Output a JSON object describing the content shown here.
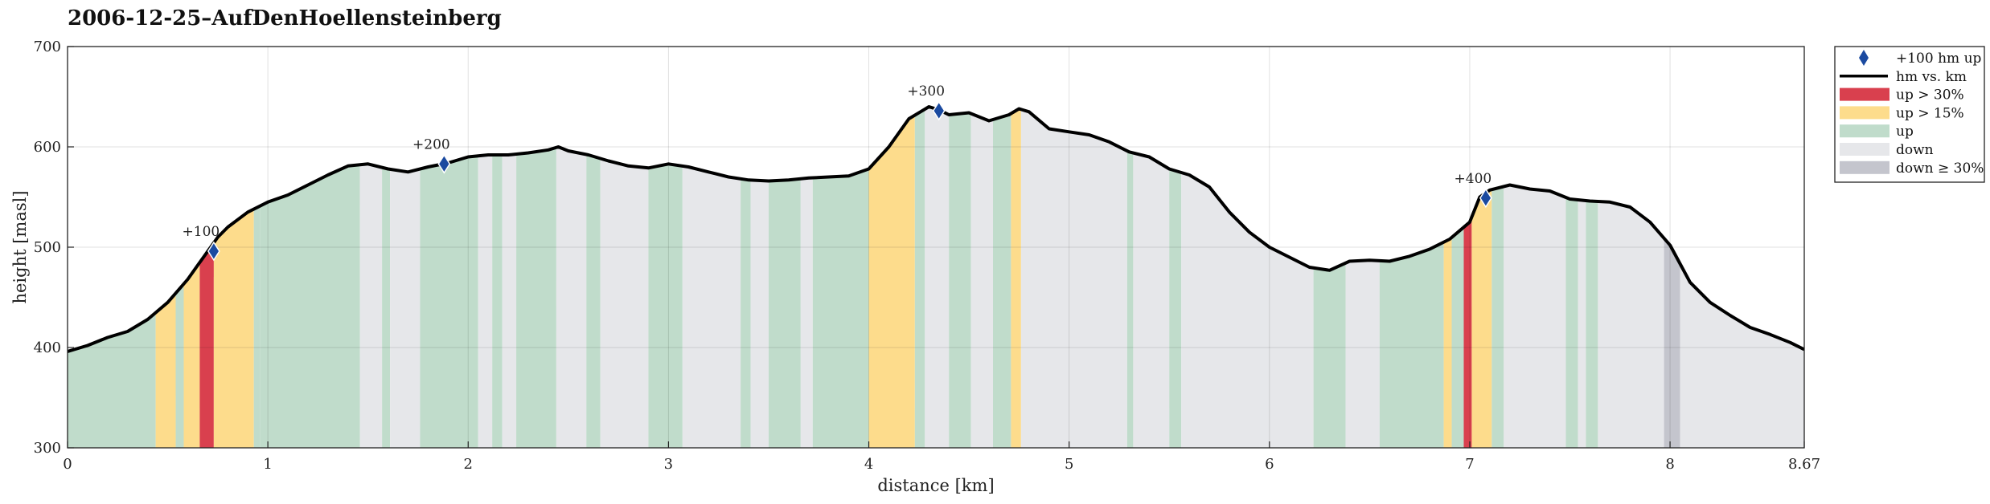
{
  "chart_data": {
    "type": "area",
    "title": "2006-12-25–AufDenHoellensteinberg",
    "xlabel": "distance [km]",
    "ylabel": "height [masl]",
    "xlim": [
      0,
      8.67
    ],
    "ylim": [
      300,
      700
    ],
    "xticks": [
      "0",
      "1",
      "2",
      "3",
      "4",
      "5",
      "6",
      "7",
      "8",
      "8.67"
    ],
    "xtick_values": [
      0,
      1,
      2,
      3,
      4,
      5,
      6,
      7,
      8,
      8.67
    ],
    "yticks": [
      "300",
      "400",
      "500",
      "600",
      "700"
    ],
    "ytick_values": [
      300,
      400,
      500,
      600,
      700
    ],
    "grid": true,
    "legend_position": "right",
    "colors": {
      "up": "#c0dccb",
      "down": "#e6e7ea",
      "up15": "#fddc8c",
      "up30": "#d9404e",
      "down30": "#c4c5cd",
      "line": "#000000",
      "marker": "#1b4aa0"
    },
    "legend": [
      {
        "label": "+100 hm up",
        "kind": "marker"
      },
      {
        "label": "hm vs. km",
        "kind": "line"
      },
      {
        "label": "up > 30%",
        "kind": "up30"
      },
      {
        "label": "up > 15%",
        "kind": "up15"
      },
      {
        "label": "up",
        "kind": "up"
      },
      {
        "label": "down",
        "kind": "down"
      },
      {
        "label": "down ≥ 30%",
        "kind": "down30"
      }
    ],
    "profile": {
      "x": [
        0,
        0.1,
        0.2,
        0.3,
        0.4,
        0.5,
        0.6,
        0.65,
        0.7,
        0.75,
        0.8,
        0.9,
        1.0,
        1.1,
        1.2,
        1.3,
        1.4,
        1.5,
        1.6,
        1.7,
        1.8,
        1.9,
        2.0,
        2.1,
        2.2,
        2.3,
        2.4,
        2.45,
        2.5,
        2.6,
        2.7,
        2.8,
        2.9,
        3.0,
        3.1,
        3.2,
        3.3,
        3.4,
        3.5,
        3.6,
        3.7,
        3.8,
        3.9,
        4.0,
        4.1,
        4.2,
        4.3,
        4.35,
        4.4,
        4.5,
        4.6,
        4.7,
        4.75,
        4.8,
        4.9,
        5.0,
        5.1,
        5.2,
        5.3,
        5.4,
        5.5,
        5.6,
        5.7,
        5.8,
        5.9,
        6.0,
        6.1,
        6.2,
        6.3,
        6.4,
        6.5,
        6.6,
        6.7,
        6.8,
        6.9,
        7.0,
        7.05,
        7.1,
        7.2,
        7.3,
        7.4,
        7.5,
        7.6,
        7.7,
        7.8,
        7.9,
        8.0,
        8.1,
        8.2,
        8.3,
        8.4,
        8.5,
        8.6,
        8.67
      ],
      "y": [
        396,
        402,
        410,
        416,
        428,
        445,
        468,
        482,
        496,
        510,
        520,
        535,
        545,
        552,
        562,
        572,
        581,
        583,
        578,
        575,
        580,
        584,
        590,
        592,
        592,
        594,
        597,
        600,
        596,
        592,
        586,
        581,
        579,
        583,
        580,
        575,
        570,
        567,
        566,
        567,
        569,
        570,
        571,
        578,
        600,
        628,
        640,
        637,
        632,
        634,
        626,
        632,
        638,
        635,
        618,
        615,
        612,
        605,
        595,
        590,
        578,
        572,
        560,
        535,
        515,
        500,
        490,
        480,
        477,
        486,
        487,
        486,
        491,
        498,
        508,
        525,
        550,
        557,
        562,
        558,
        556,
        548,
        546,
        545,
        540,
        525,
        502,
        465,
        445,
        432,
        420,
        413,
        405,
        398
      ]
    },
    "bands": [
      {
        "from": 0,
        "to": 0.44,
        "class": "up"
      },
      {
        "from": 0.44,
        "to": 0.54,
        "class": "up15"
      },
      {
        "from": 0.54,
        "to": 0.58,
        "class": "up"
      },
      {
        "from": 0.58,
        "to": 0.66,
        "class": "up15"
      },
      {
        "from": 0.66,
        "to": 0.73,
        "class": "up30"
      },
      {
        "from": 0.73,
        "to": 0.93,
        "class": "up15"
      },
      {
        "from": 0.93,
        "to": 0.96,
        "class": "up"
      },
      {
        "from": 0.96,
        "to": 1.46,
        "class": "up"
      },
      {
        "from": 1.46,
        "to": 1.57,
        "class": "down"
      },
      {
        "from": 1.57,
        "to": 1.61,
        "class": "up"
      },
      {
        "from": 1.61,
        "to": 1.76,
        "class": "down"
      },
      {
        "from": 1.76,
        "to": 2.05,
        "class": "up"
      },
      {
        "from": 2.05,
        "to": 2.12,
        "class": "down"
      },
      {
        "from": 2.12,
        "to": 2.17,
        "class": "up"
      },
      {
        "from": 2.17,
        "to": 2.24,
        "class": "down"
      },
      {
        "from": 2.24,
        "to": 2.44,
        "class": "up"
      },
      {
        "from": 2.44,
        "to": 2.59,
        "class": "down"
      },
      {
        "from": 2.59,
        "to": 2.66,
        "class": "up"
      },
      {
        "from": 2.66,
        "to": 2.9,
        "class": "down"
      },
      {
        "from": 2.9,
        "to": 3.07,
        "class": "up"
      },
      {
        "from": 3.07,
        "to": 3.36,
        "class": "down"
      },
      {
        "from": 3.36,
        "to": 3.41,
        "class": "up"
      },
      {
        "from": 3.41,
        "to": 3.5,
        "class": "down"
      },
      {
        "from": 3.5,
        "to": 3.66,
        "class": "up"
      },
      {
        "from": 3.66,
        "to": 3.72,
        "class": "down"
      },
      {
        "from": 3.72,
        "to": 4.0,
        "class": "up"
      },
      {
        "from": 4.0,
        "to": 4.23,
        "class": "up15"
      },
      {
        "from": 4.23,
        "to": 4.28,
        "class": "up"
      },
      {
        "from": 4.28,
        "to": 4.4,
        "class": "down"
      },
      {
        "from": 4.4,
        "to": 4.51,
        "class": "up"
      },
      {
        "from": 4.51,
        "to": 4.62,
        "class": "down"
      },
      {
        "from": 4.62,
        "to": 4.71,
        "class": "up"
      },
      {
        "from": 4.71,
        "to": 4.76,
        "class": "up15"
      },
      {
        "from": 4.76,
        "to": 5.29,
        "class": "down"
      },
      {
        "from": 5.29,
        "to": 5.32,
        "class": "up"
      },
      {
        "from": 5.32,
        "to": 5.5,
        "class": "down"
      },
      {
        "from": 5.5,
        "to": 5.56,
        "class": "up"
      },
      {
        "from": 5.56,
        "to": 6.22,
        "class": "down"
      },
      {
        "from": 6.22,
        "to": 6.38,
        "class": "up"
      },
      {
        "from": 6.38,
        "to": 6.55,
        "class": "down"
      },
      {
        "from": 6.55,
        "to": 6.87,
        "class": "up"
      },
      {
        "from": 6.87,
        "to": 6.91,
        "class": "up15"
      },
      {
        "from": 6.91,
        "to": 6.97,
        "class": "up"
      },
      {
        "from": 6.97,
        "to": 7.01,
        "class": "up30"
      },
      {
        "from": 7.01,
        "to": 7.11,
        "class": "up15"
      },
      {
        "from": 7.11,
        "to": 7.17,
        "class": "up"
      },
      {
        "from": 7.17,
        "to": 7.48,
        "class": "down"
      },
      {
        "from": 7.48,
        "to": 7.54,
        "class": "up"
      },
      {
        "from": 7.54,
        "to": 7.58,
        "class": "down"
      },
      {
        "from": 7.58,
        "to": 7.64,
        "class": "up"
      },
      {
        "from": 7.64,
        "to": 7.97,
        "class": "down"
      },
      {
        "from": 7.97,
        "to": 8.05,
        "class": "down30"
      },
      {
        "from": 8.05,
        "to": 8.67,
        "class": "down"
      }
    ],
    "markers": [
      {
        "label": "+100",
        "x": 0.73,
        "y": 496
      },
      {
        "label": "+200",
        "x": 1.88,
        "y": 583
      },
      {
        "label": "+300",
        "x": 4.35,
        "y": 636
      },
      {
        "label": "+400",
        "x": 7.08,
        "y": 549
      }
    ]
  }
}
